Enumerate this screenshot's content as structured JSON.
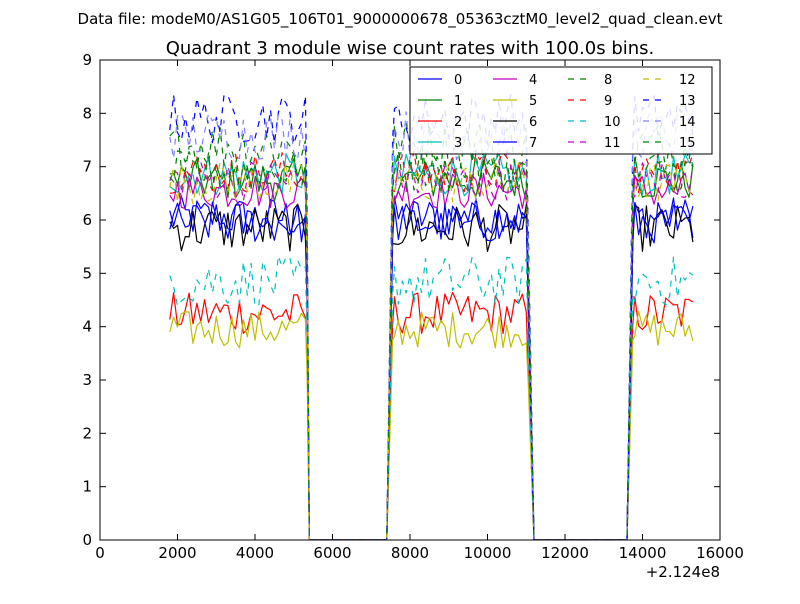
{
  "header": {
    "data_file": "Data file: modeM0/AS1G05_106T01_9000000678_05363cztM0_level2_quad_clean.evt"
  },
  "chart_data": {
    "type": "line",
    "title": "Quadrant 3 module wise count rates with 100.0s bins.",
    "xlabel": "",
    "ylabel": "",
    "x_offset_label": "+2.124e8",
    "xlim": [
      0,
      16000
    ],
    "ylim": [
      0,
      9
    ],
    "xticks": [
      0,
      2000,
      4000,
      6000,
      8000,
      10000,
      12000,
      14000,
      16000
    ],
    "xtick_labels": [
      "0",
      "2000",
      "4000",
      "6000",
      "8000",
      "10000",
      "12000",
      "14000",
      "16000"
    ],
    "yticks": [
      0,
      1,
      2,
      3,
      4,
      5,
      6,
      7,
      8,
      9
    ],
    "ytick_labels": [
      "0",
      "1",
      "2",
      "3",
      "4",
      "5",
      "6",
      "7",
      "8",
      "9"
    ],
    "grid": false,
    "legend_position": "top-right",
    "legend_columns": 4,
    "bin_seconds": 100,
    "segments": [
      {
        "start": 1800,
        "end": 5300
      },
      {
        "start": 7600,
        "end": 11000
      },
      {
        "start": 13800,
        "end": 15300
      }
    ],
    "gaps": [
      {
        "drop_from": 5350,
        "zero_start": 5400,
        "zero_end": 7400,
        "rise_to": 7550
      },
      {
        "drop_from": 11050,
        "zero_start": 11200,
        "zero_end": 13600,
        "rise_to": 13750
      }
    ],
    "series": [
      {
        "name": "0",
        "color": "#0000ff",
        "dash": "solid",
        "mean": 6.05,
        "noise": 0.25
      },
      {
        "name": "1",
        "color": "#008000",
        "dash": "solid",
        "mean": 6.75,
        "noise": 0.25
      },
      {
        "name": "2",
        "color": "#ff0000",
        "dash": "solid",
        "mean": 4.25,
        "noise": 0.25
      },
      {
        "name": "3",
        "color": "#00bfbf",
        "dash": "solid",
        "mean": 6.85,
        "noise": 0.25
      },
      {
        "name": "4",
        "color": "#bf00bf",
        "dash": "solid",
        "mean": 6.55,
        "noise": 0.22
      },
      {
        "name": "5",
        "color": "#bfbf00",
        "dash": "solid",
        "mean": 3.95,
        "noise": 0.22
      },
      {
        "name": "6",
        "color": "#000000",
        "dash": "solid",
        "mean": 5.85,
        "noise": 0.28
      },
      {
        "name": "7",
        "color": "#0000ff",
        "dash": "solid",
        "mean": 5.95,
        "noise": 0.25
      },
      {
        "name": "8",
        "color": "#008000",
        "dash": "dashed",
        "mean": 7.4,
        "noise": 0.3
      },
      {
        "name": "9",
        "color": "#ff0000",
        "dash": "dashed",
        "mean": 6.9,
        "noise": 0.25
      },
      {
        "name": "10",
        "color": "#00bfbf",
        "dash": "dashed",
        "mean": 4.85,
        "noise": 0.3
      },
      {
        "name": "11",
        "color": "#bf00bf",
        "dash": "dashed",
        "mean": 6.75,
        "noise": 0.25
      },
      {
        "name": "12",
        "color": "#bfbf00",
        "dash": "dashed",
        "mean": 6.7,
        "noise": 0.25
      },
      {
        "name": "13",
        "color": "#0000ff",
        "dash": "dashed",
        "mean": 7.9,
        "noise": 0.3
      },
      {
        "name": "14",
        "color": "#8080ff",
        "dash": "dashed",
        "mean": 7.6,
        "noise": 0.3
      },
      {
        "name": "15",
        "color": "#008000",
        "dash": "dashed",
        "mean": 6.9,
        "noise": 0.25
      }
    ]
  }
}
